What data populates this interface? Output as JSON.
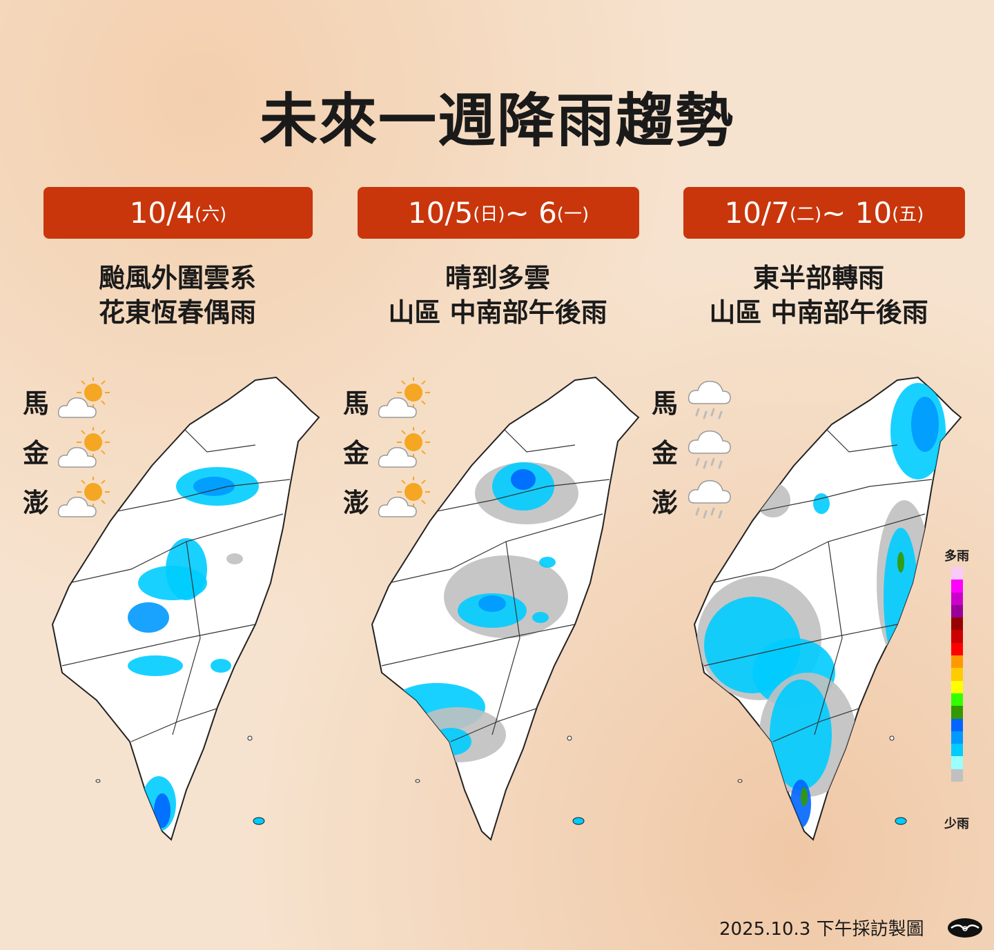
{
  "title": "未來一週降雨趨勢",
  "panels": [
    {
      "date_main": "10/4",
      "date_suffix": "(六)",
      "date_tail": "",
      "date_tail_suffix": "",
      "desc_line1": "颱風外圍雲系",
      "desc_line2": "花東恆春偶雨",
      "islands": [
        {
          "name": "馬",
          "icon": "partly-sunny-icon"
        },
        {
          "name": "金",
          "icon": "partly-sunny-icon"
        },
        {
          "name": "澎",
          "icon": "partly-sunny-icon"
        }
      ]
    },
    {
      "date_main": "10/5",
      "date_suffix": "(日)",
      "date_tail": " ~ 6",
      "date_tail_suffix": "(一)",
      "desc_line1": "晴到多雲",
      "desc_line2": "山區 中南部午後雨",
      "islands": [
        {
          "name": "馬",
          "icon": "partly-sunny-icon"
        },
        {
          "name": "金",
          "icon": "partly-sunny-icon"
        },
        {
          "name": "澎",
          "icon": "partly-sunny-icon"
        }
      ]
    },
    {
      "date_main": "10/7",
      "date_suffix": "(二)",
      "date_tail": " ~ 10",
      "date_tail_suffix": "(五)",
      "desc_line1": "東半部轉雨",
      "desc_line2": "山區 中南部午後雨",
      "islands": [
        {
          "name": "馬",
          "icon": "rain-cloud-icon"
        },
        {
          "name": "金",
          "icon": "rain-cloud-icon"
        },
        {
          "name": "澎",
          "icon": "rain-cloud-icon"
        }
      ]
    }
  ],
  "legend": {
    "top_label": "多雨",
    "bottom_label": "少雨",
    "colors": [
      "#f9c9f9",
      "#ff00ff",
      "#cc00cc",
      "#990099",
      "#990000",
      "#cc0000",
      "#ff0000",
      "#ff9900",
      "#ffcc00",
      "#ffff00",
      "#33ff00",
      "#339900",
      "#0066ff",
      "#0099ff",
      "#00ccff",
      "#99ffff",
      "#c0c0c0"
    ]
  },
  "footer": "2025.10.3 下午採訪製圖",
  "colors": {
    "accent": "#c9360c",
    "light_rain": "#00ccff",
    "moderate_rain": "#0099ff",
    "heavy_rain": "#0066ff",
    "trace": "#c0c0c0"
  }
}
